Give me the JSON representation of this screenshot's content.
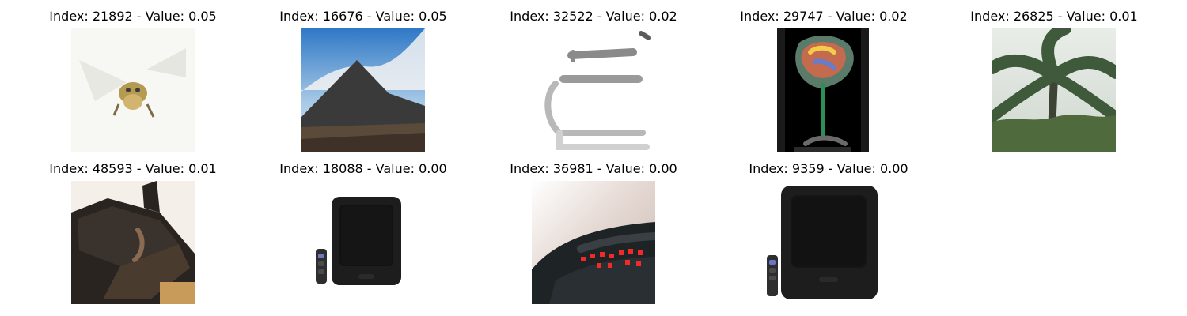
{
  "grid": {
    "items": [
      {
        "title": "Index: 21892 - Value: 0.05",
        "icon": "bee-photo"
      },
      {
        "title": "Index: 16676 - Value: 0.05",
        "icon": "mountain-photo"
      },
      {
        "title": "Index: 32522 - Value: 0.02",
        "icon": "chair-photo"
      },
      {
        "title": "Index: 29747 - Value: 0.02",
        "icon": "glass-photo"
      },
      {
        "title": "Index: 26825 - Value: 0.01",
        "icon": "palm-tree-photo"
      },
      {
        "title": "Index: 48593 - Value: 0.01",
        "icon": "dark-object-photo"
      },
      {
        "title": "Index: 18088 - Value: 0.00",
        "icon": "tv-remote-photo"
      },
      {
        "title": "Index: 36981 - Value: 0.00",
        "icon": "digital-clock-photo"
      },
      {
        "title": "Index: 9359 - Value: 0.00",
        "icon": "tv-remote-photo"
      }
    ]
  }
}
